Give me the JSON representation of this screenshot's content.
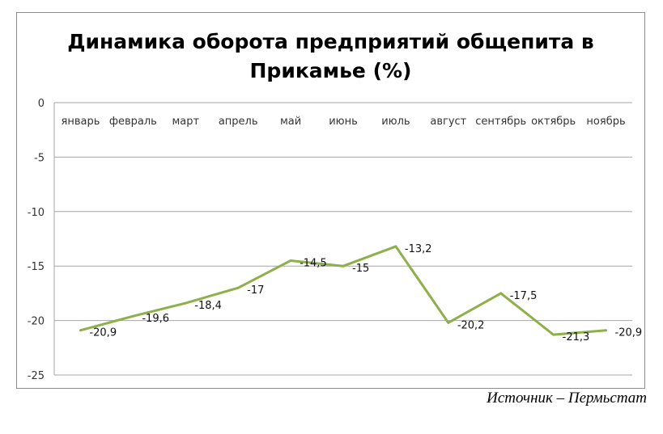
{
  "chart_data": {
    "type": "line",
    "title": "Динамика оборота предприятий общепита в Прикамье (%)",
    "categories": [
      "январь",
      "февраль",
      "март",
      "апрель",
      "май",
      "июнь",
      "июль",
      "август",
      "сентябрь",
      "октябрь",
      "ноябрь"
    ],
    "series": [
      {
        "values": [
          -20.9,
          -19.6,
          -18.4,
          -17,
          -14.5,
          -15,
          -13.2,
          -20.2,
          -17.5,
          -21.3,
          -20.9
        ],
        "color": "#8db04a"
      }
    ],
    "data_labels": [
      "-20,9",
      "-19,6",
      "-18,4",
      "-17",
      "-14,5",
      "-15",
      "-13,2",
      "-20,2",
      "-17,5",
      "-21,3",
      "-20,9"
    ],
    "y_ticks": [
      "0",
      "-5",
      "-10",
      "-15",
      "-20",
      "-25"
    ],
    "y_tick_values": [
      0,
      -5,
      -10,
      -15,
      -20,
      -25
    ],
    "ylim": [
      -25,
      0
    ],
    "x_axis_position": "top",
    "grid": true,
    "legend": "none"
  },
  "source": "Источник – Пермьстат"
}
